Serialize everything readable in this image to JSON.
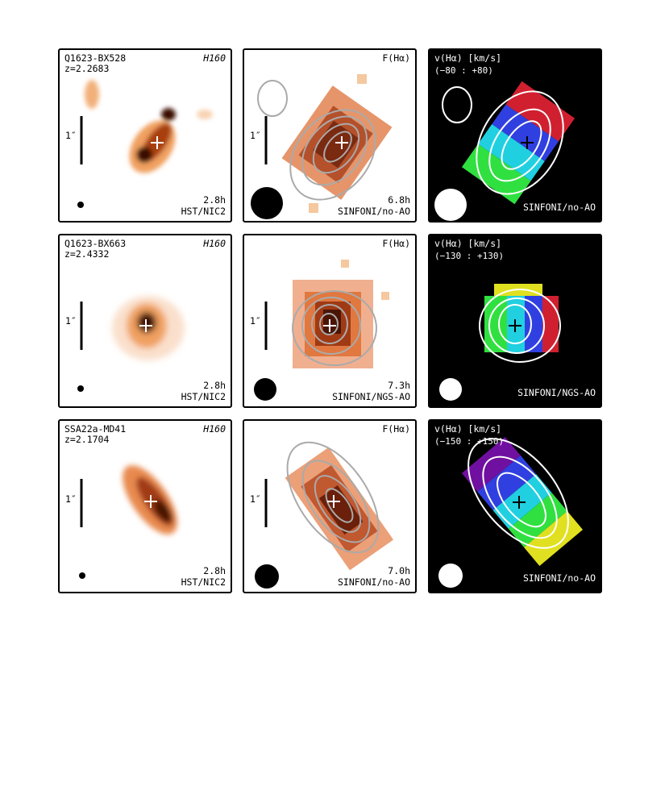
{
  "scale_label": "1″",
  "rows": [
    {
      "name": "Q1623-BX528",
      "redshift": "z=2.2683",
      "hst": {
        "filter": "H160",
        "time": "2.8h",
        "instrument": "HST/NIC2"
      },
      "flux": {
        "label": "F(Hα)",
        "time": "6.8h",
        "instrument": "SINFONI/no-AO"
      },
      "velocity": {
        "label": "v(Hα) [km/s]",
        "range": "(−80 : +80)",
        "instrument": "SINFONI/no-AO"
      }
    },
    {
      "name": "Q1623-BX663",
      "redshift": "z=2.4332",
      "hst": {
        "filter": "H160",
        "time": "2.8h",
        "instrument": "HST/NIC2"
      },
      "flux": {
        "label": "F(Hα)",
        "time": "7.3h",
        "instrument": "SINFONI/NGS-AO"
      },
      "velocity": {
        "label": "v(Hα) [km/s]",
        "range": "(−130 : +130)",
        "instrument": "SINFONI/NGS-AO"
      }
    },
    {
      "name": "SSA22a-MD41",
      "redshift": "z=2.1704",
      "hst": {
        "filter": "H160",
        "time": "2.8h",
        "instrument": "HST/NIC2"
      },
      "flux": {
        "label": "F(Hα)",
        "time": "7.0h",
        "instrument": "SINFONI/no-AO"
      },
      "velocity": {
        "label": "v(Hα) [km/s]",
        "range": "(−150 : +150)",
        "instrument": "SINFONI/no-AO"
      }
    }
  ]
}
